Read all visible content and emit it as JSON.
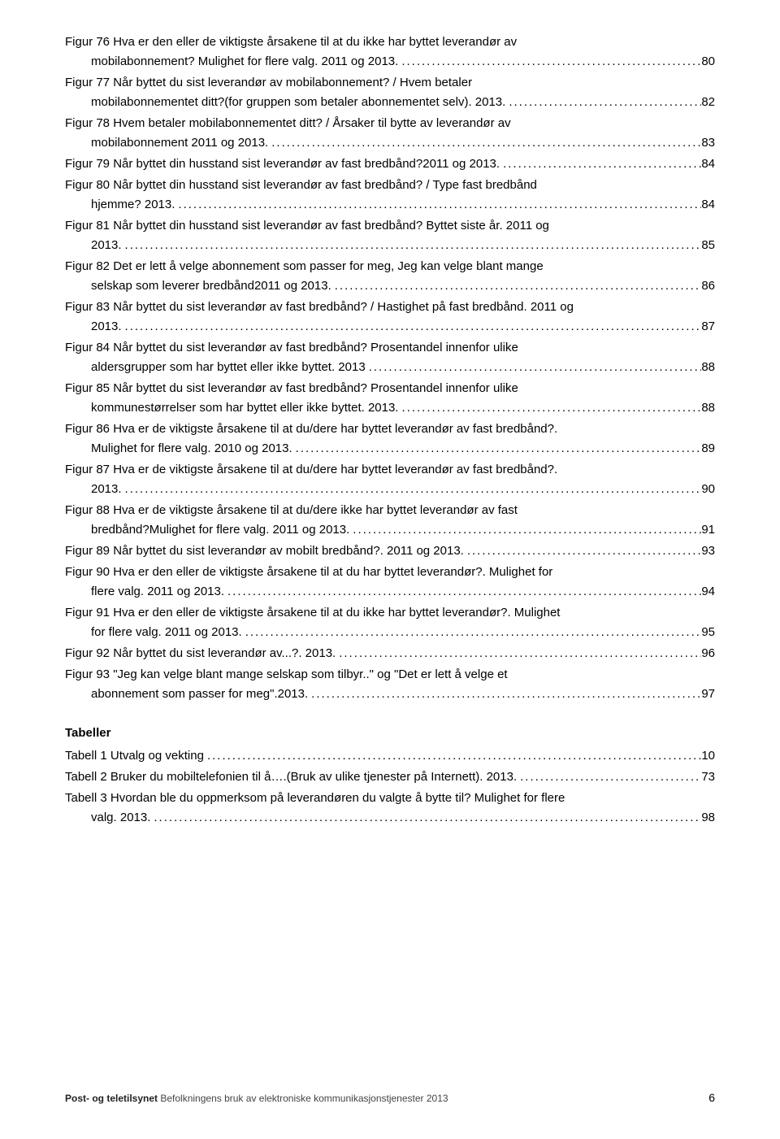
{
  "dots": "....................................................................................................................................................................................",
  "figures": [
    {
      "l1": "Figur 76 Hva er den eller de viktigste årsakene til at du ikke har byttet leverandør av",
      "l2": "mobilabonnement? Mulighet for flere valg. 2011 og 2013.",
      "pg": "80"
    },
    {
      "l1": "Figur 77 Når byttet du sist leverandør av mobilabonnement? / Hvem betaler",
      "l2": "mobilabonnementet ditt?(for gruppen som betaler abonnementet selv). 2013.",
      "pg": "82"
    },
    {
      "l1": "Figur 78 Hvem betaler mobilabonnementet ditt? / Årsaker til bytte av leverandør av",
      "l2": "mobilabonnement 2011 og 2013.",
      "pg": "83"
    },
    {
      "l1": "Figur 79 Når byttet din husstand sist leverandør av fast bredbånd?2011 og 2013.",
      "pg": "84"
    },
    {
      "l1": "Figur 80 Når byttet din husstand sist leverandør av fast bredbånd? / Type fast bredbånd",
      "l2": "hjemme? 2013.",
      "pg": "84"
    },
    {
      "l1": "Figur 81 Når byttet din husstand sist leverandør av fast bredbånd? Byttet siste år. 2011 og",
      "l2": "2013.",
      "pg": "85"
    },
    {
      "l1": "Figur 82 Det er lett å velge abonnement som passer for meg, Jeg kan velge blant mange",
      "l2": "selskap som leverer bredbånd2011 og 2013.",
      "pg": "86"
    },
    {
      "l1": "Figur 83 Når byttet du sist leverandør av fast bredbånd? / Hastighet på fast bredbånd. 2011 og",
      "l2": "2013.",
      "pg": "87"
    },
    {
      "l1": "Figur 84 Når byttet du sist leverandør av fast bredbånd? Prosentandel innenfor ulike",
      "l2": "aldersgrupper som har byttet eller ikke byttet. 2013",
      "pg": "88"
    },
    {
      "l1": "Figur 85 Når byttet du sist leverandør av fast bredbånd? Prosentandel innenfor ulike",
      "l2": "kommunestørrelser som har byttet eller ikke byttet. 2013.",
      "pg": "88"
    },
    {
      "l1": "Figur 86 Hva er de viktigste årsakene til at du/dere har byttet leverandør av fast bredbånd?.",
      "l2": "Mulighet for flere valg. 2010 og 2013.",
      "pg": "89"
    },
    {
      "l1": "Figur 87 Hva er de viktigste årsakene til at du/dere har byttet leverandør av fast bredbånd?.",
      "l2": "2013.",
      "pg": "90"
    },
    {
      "l1": "Figur 88 Hva er de viktigste årsakene til at du/dere ikke har byttet leverandør av fast",
      "l2": "bredbånd?Mulighet for flere valg. 2011 og 2013.",
      "pg": "91"
    },
    {
      "l1": "Figur 89 Når byttet du sist leverandør av mobilt bredbånd?. 2011 og 2013.",
      "pg": "93"
    },
    {
      "l1": "Figur 90 Hva er den eller de viktigste årsakene til at du har byttet leverandør?. Mulighet for",
      "l2": "flere valg. 2011 og 2013.",
      "pg": "94"
    },
    {
      "l1": "Figur 91 Hva er den eller de viktigste årsakene til at du ikke har byttet leverandør?. Mulighet",
      "l2": "for flere valg. 2011 og 2013.",
      "pg": "95"
    },
    {
      "l1": "Figur 92 Når byttet du sist leverandør av...?. 2013.",
      "pg": "96"
    },
    {
      "l1": "Figur 93 \"Jeg kan velge blant mange selskap som tilbyr..\" og \"Det er lett å velge et",
      "l2": "abonnement som passer for meg\".2013.",
      "pg": "97"
    }
  ],
  "tables_heading": "Tabeller",
  "tables": [
    {
      "l1": "Tabell 1 Utvalg og vekting",
      "pg": "10"
    },
    {
      "l1": "Tabell 2 Bruker du mobiltelefonien til å….(Bruk av ulike tjenester på Internett). 2013.",
      "pg": "73"
    },
    {
      "l1": "Tabell 3 Hvordan ble du oppmerksom på leverandøren du valgte å bytte til? Mulighet for flere",
      "l2": "valg. 2013.",
      "pg": "98"
    }
  ],
  "footer": {
    "bold": "Post- og teletilsynet",
    "rest": " Befolkningens bruk av elektroniske kommunikasjonstjenester 2013"
  },
  "page_number": "6"
}
